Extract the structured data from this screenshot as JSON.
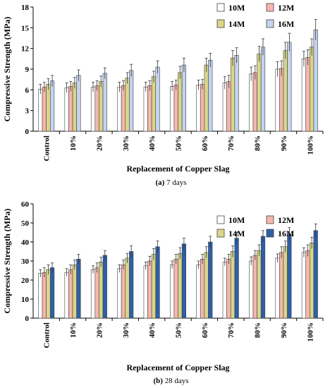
{
  "chart_data": [
    {
      "type": "bar",
      "caption_letter": "(a)",
      "caption_text": "7 days",
      "title": "",
      "xlabel": "Replacement of Copper Slag",
      "ylabel": "Compressive Strength (MPa)",
      "ylim": [
        0,
        18
      ],
      "yticks": [
        0,
        3,
        6,
        9,
        12,
        15,
        18
      ],
      "grid": false,
      "legend_position": "top-right",
      "categories": [
        "Control",
        "10%",
        "20%",
        "30%",
        "40%",
        "50%",
        "60%",
        "70%",
        "80%",
        "90%",
        "100%"
      ],
      "series": [
        {
          "name": "10M",
          "color": "#ffffff",
          "values": [
            6.1,
            6.3,
            6.4,
            6.4,
            6.4,
            6.5,
            6.7,
            7.0,
            8.3,
            9.0,
            10.5
          ]
        },
        {
          "name": "12M",
          "color": "#f7b6ad",
          "values": [
            6.4,
            6.5,
            6.6,
            6.6,
            6.6,
            6.7,
            6.8,
            7.2,
            8.5,
            9.1,
            10.7
          ]
        },
        {
          "name": "14M",
          "color": "#d8d68a",
          "values": [
            6.8,
            7.0,
            7.2,
            7.7,
            7.9,
            8.5,
            9.6,
            10.6,
            11.2,
            11.7,
            12.2
          ]
        },
        {
          "name": "16M",
          "color": "#c4d3ee",
          "values": [
            7.3,
            8.1,
            8.4,
            8.8,
            9.3,
            9.6,
            10.3,
            11.0,
            12.2,
            12.9,
            14.7
          ]
        }
      ],
      "errors": [
        [
          0.7,
          0.7,
          0.7,
          0.7,
          0.7,
          0.7,
          0.7,
          0.9,
          1.0,
          1.1,
          1.1
        ],
        [
          0.7,
          0.7,
          0.7,
          0.7,
          0.7,
          0.7,
          0.7,
          0.9,
          1.0,
          1.1,
          1.1
        ],
        [
          0.8,
          0.8,
          0.8,
          0.8,
          0.8,
          0.9,
          1.0,
          1.1,
          1.1,
          1.2,
          1.2
        ],
        [
          0.8,
          0.8,
          0.8,
          0.9,
          0.9,
          1.0,
          1.0,
          1.1,
          1.2,
          1.3,
          1.5
        ]
      ]
    },
    {
      "type": "bar",
      "caption_letter": "(b)",
      "caption_text": "28 days",
      "title": "",
      "xlabel": "Replacement of Copper Slag",
      "ylabel": "Compressive Strength (MPa)",
      "ylim": [
        0,
        60
      ],
      "yticks": [
        0,
        10,
        20,
        30,
        40,
        50,
        60
      ],
      "grid": false,
      "legend_position": "top-right",
      "categories": [
        "Control",
        "10%",
        "20%",
        "30%",
        "40%",
        "50%",
        "60%",
        "70%",
        "80%",
        "90%",
        "100%"
      ],
      "series": [
        {
          "name": "10M",
          "color": "#ffffff",
          "values": [
            23.5,
            24.0,
            25.5,
            26.0,
            27.5,
            28.0,
            28.0,
            29.5,
            30.0,
            31.5,
            34.5
          ]
        },
        {
          "name": "12M",
          "color": "#f7b6ad",
          "values": [
            24.0,
            25.5,
            26.5,
            28.0,
            30.0,
            31.0,
            31.0,
            31.0,
            33.0,
            34.5,
            35.5
          ]
        },
        {
          "name": "14M",
          "color": "#d8d68a",
          "values": [
            25.5,
            28.0,
            29.5,
            31.5,
            33.5,
            34.0,
            34.5,
            35.0,
            35.5,
            37.5,
            39.5
          ]
        },
        {
          "name": "16M",
          "color": "#2e5fa8",
          "values": [
            26.5,
            31.0,
            33.0,
            35.0,
            37.5,
            39.0,
            40.0,
            42.0,
            43.0,
            44.0,
            46.0
          ]
        }
      ],
      "errors": [
        [
          2.0,
          2.0,
          2.0,
          2.0,
          2.0,
          2.0,
          2.0,
          2.0,
          2.2,
          2.2,
          2.5
        ],
        [
          2.5,
          2.5,
          2.5,
          2.5,
          2.5,
          2.5,
          2.5,
          2.5,
          2.5,
          3.0,
          3.0
        ],
        [
          2.5,
          2.5,
          2.5,
          2.5,
          3.0,
          3.0,
          3.0,
          3.0,
          3.0,
          3.0,
          3.0
        ],
        [
          2.5,
          2.5,
          2.5,
          3.0,
          3.0,
          3.0,
          3.0,
          3.0,
          3.0,
          3.5,
          3.5
        ]
      ]
    }
  ]
}
